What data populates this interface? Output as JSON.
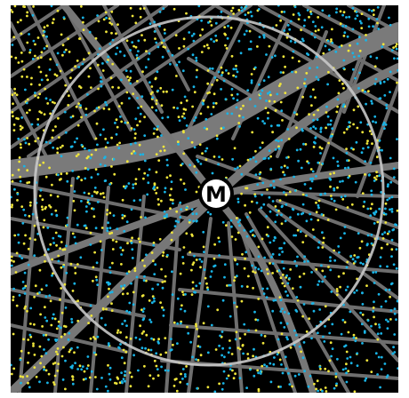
{
  "map": {
    "station_marker_label": "M",
    "colors": {
      "background": "#000000",
      "roads": "#707070",
      "highway": "#7a7a7a",
      "radius_circle": "#c8c8c8",
      "marker_fill": "#ffffff",
      "marker_text": "#000000",
      "dot_group_a": "#f0e63c",
      "dot_group_b": "#19b4e6"
    },
    "dot_groups": [
      "group-a",
      "group-b"
    ]
  }
}
